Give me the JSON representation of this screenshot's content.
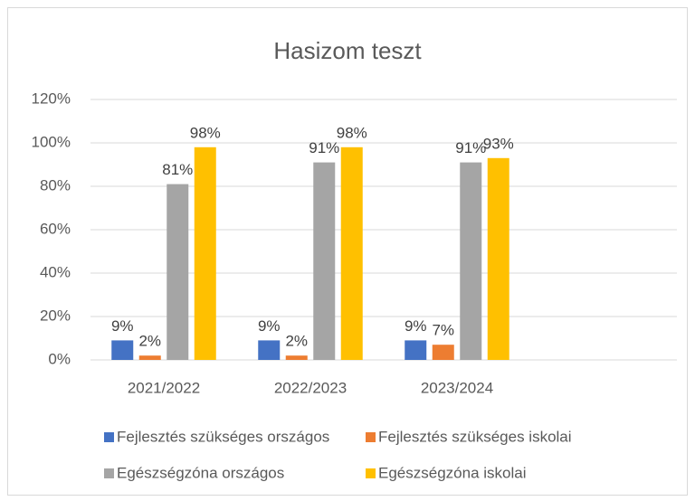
{
  "chart_data": {
    "type": "bar",
    "title": "Hasizom teszt",
    "categories": [
      "2021/2022",
      "2022/2023",
      "2023/2024",
      null
    ],
    "series": [
      {
        "name": "Fejlesztés szükséges országos",
        "color": "#4472c4",
        "values": [
          9,
          9,
          9,
          null
        ],
        "value_labels": [
          "9%",
          "9%",
          "9%",
          null
        ]
      },
      {
        "name": "Fejlesztés szükséges iskolai",
        "color": "#ed7d31",
        "values": [
          2,
          2,
          7,
          null
        ],
        "value_labels": [
          "2%",
          "2%",
          "7%",
          null
        ]
      },
      {
        "name": "Egészségzóna országos",
        "color": "#a5a5a5",
        "values": [
          81,
          91,
          91,
          null
        ],
        "value_labels": [
          "81%",
          "91%",
          "91%",
          null
        ]
      },
      {
        "name": "Egészségzóna iskolai",
        "color": "#ffc000",
        "values": [
          98,
          98,
          93,
          null
        ],
        "value_labels": [
          "98%",
          "98%",
          "93%",
          null
        ]
      }
    ],
    "ylim": [
      0,
      120
    ],
    "yticks": [
      {
        "value": 0,
        "label": "0%"
      },
      {
        "value": 20,
        "label": "20%"
      },
      {
        "value": 40,
        "label": "40%"
      },
      {
        "value": 60,
        "label": "60%"
      },
      {
        "value": 80,
        "label": "80%"
      },
      {
        "value": 100,
        "label": "100%"
      },
      {
        "value": 120,
        "label": "120%"
      }
    ],
    "grid": true,
    "legend": "bottom"
  }
}
